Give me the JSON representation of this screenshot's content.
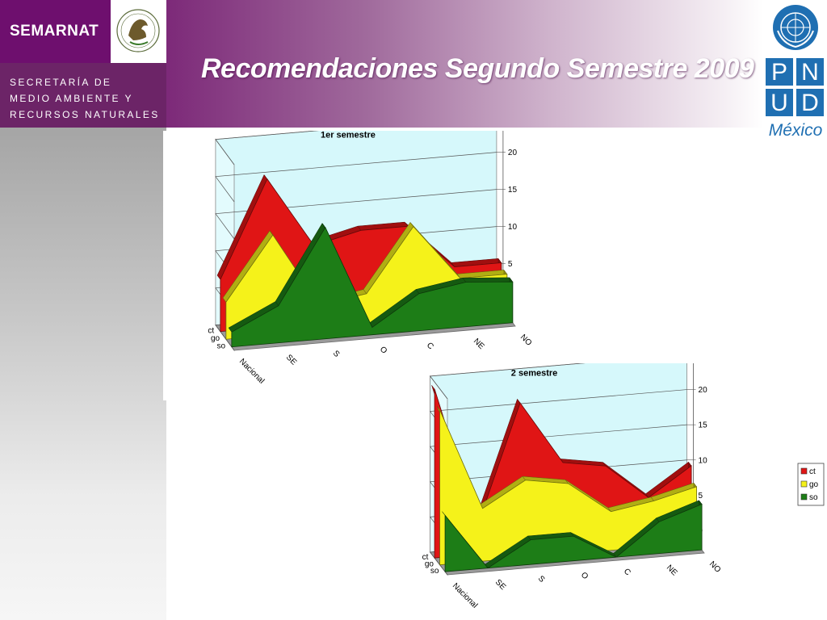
{
  "header": {
    "brand": "SEMARNAT",
    "agency_lines": [
      "SECRETARÍA DE",
      "MEDIO AMBIENTE Y",
      "RECURSOS NATURALES"
    ],
    "title": "Recomendaciones Segundo Semestre 2009"
  },
  "pnud": {
    "letters": [
      "P",
      "N",
      "U",
      "D"
    ],
    "country": "México"
  },
  "colors": {
    "ct": "#e01515",
    "go": "#f5f21a",
    "so": "#1d7d17",
    "wall": "#d6f8fb"
  },
  "chart_data": [
    {
      "type": "area",
      "title": "1er semestre",
      "categories": [
        "Nacional",
        "SE",
        "S",
        "O",
        "C",
        "NE",
        "NO"
      ],
      "series": [
        {
          "name": "ct",
          "values": [
            7,
            20,
            10.5,
            12,
            12,
            6,
            6
          ]
        },
        {
          "name": "go",
          "values": [
            5,
            13.5,
            3.5,
            4.5,
            13,
            5.5,
            5.5
          ]
        },
        {
          "name": "so",
          "values": [
            2,
            5,
            15,
            1,
            5,
            6,
            5.5
          ]
        }
      ],
      "ylim": [
        0,
        25
      ],
      "yticks": [
        0,
        5,
        10,
        15,
        20,
        25
      ],
      "legend": "right"
    },
    {
      "type": "area",
      "title": "2 semestre",
      "categories": [
        "Nacional",
        "SE",
        "S",
        "O",
        "C",
        "NE",
        "NO"
      ],
      "series": [
        {
          "name": "ct",
          "values": [
            24,
            4,
            21,
            12,
            11,
            6,
            10
          ]
        },
        {
          "name": "go",
          "values": [
            22,
            7.5,
            11,
            10,
            5.5,
            6.5,
            8
          ]
        },
        {
          "name": "so",
          "values": [
            8,
            0,
            3.5,
            3.5,
            0,
            4.5,
            6.5
          ]
        }
      ],
      "ylim": [
        0,
        25
      ],
      "yticks": [
        0,
        5,
        10,
        15,
        20,
        25
      ],
      "legend": "right"
    }
  ]
}
